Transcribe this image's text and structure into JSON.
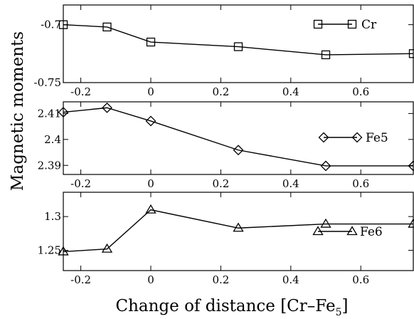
{
  "figure": {
    "ylabel": "Magnetic moments",
    "xlabel": "Change of distance [Cr–Fe",
    "xlabel_subscript": "5",
    "xlabel_close": "]"
  },
  "chart_data": [
    {
      "type": "line",
      "series": [
        {
          "name": "Cr",
          "marker": "square",
          "x": [
            -0.25,
            -0.125,
            0,
            0.25,
            0.5,
            0.75
          ],
          "y": [
            -0.7,
            -0.702,
            -0.715,
            -0.719,
            -0.726,
            -0.725
          ]
        }
      ],
      "xlim": [
        -0.25,
        0.75
      ],
      "ylim": [
        -0.75,
        -0.683
      ],
      "xticks": [
        -0.2,
        0,
        0.2,
        0.4,
        0.6
      ],
      "xtick_labels": [
        "-0.2",
        "0",
        "0.2",
        "0.4",
        "0.6"
      ],
      "yticks": [
        -0.7,
        -0.75
      ],
      "ytick_labels": [
        "-0.7",
        "-0.75"
      ],
      "legend": "top-right"
    },
    {
      "type": "line",
      "series": [
        {
          "name": "Fe5",
          "marker": "diamond",
          "x": [
            -0.25,
            -0.125,
            0,
            0.25,
            0.5,
            0.75
          ],
          "y": [
            2.4105,
            2.4122,
            2.4071,
            2.3959,
            2.3898,
            2.3898
          ]
        }
      ],
      "xlim": [
        -0.25,
        0.75
      ],
      "ylim": [
        2.3865,
        2.4145
      ],
      "xticks": [
        -0.2,
        0,
        0.2,
        0.4,
        0.6
      ],
      "xtick_labels": [
        "-0.2",
        "0",
        "0.2",
        "0.4",
        "0.6"
      ],
      "yticks": [
        2.41,
        2.4,
        2.39
      ],
      "ytick_labels": [
        "2.41",
        "2.4",
        "2.39"
      ],
      "legend": "right"
    },
    {
      "type": "line",
      "series": [
        {
          "name": "Fe6",
          "marker": "triangle",
          "x": [
            -0.25,
            -0.125,
            0,
            0.25,
            0.5,
            0.75
          ],
          "y": [
            1.248,
            1.252,
            1.31,
            1.283,
            1.289,
            1.289
          ]
        }
      ],
      "xlim": [
        -0.25,
        0.75
      ],
      "ylim": [
        1.22,
        1.336
      ],
      "xticks": [
        -0.2,
        0,
        0.2,
        0.4,
        0.6
      ],
      "xtick_labels": [
        "-0.2",
        "0",
        "0.2",
        "0.4",
        "0.6"
      ],
      "yticks": [
        1.3,
        1.25
      ],
      "ytick_labels": [
        "1.3",
        "1.25"
      ],
      "legend": "bottom-right"
    }
  ]
}
